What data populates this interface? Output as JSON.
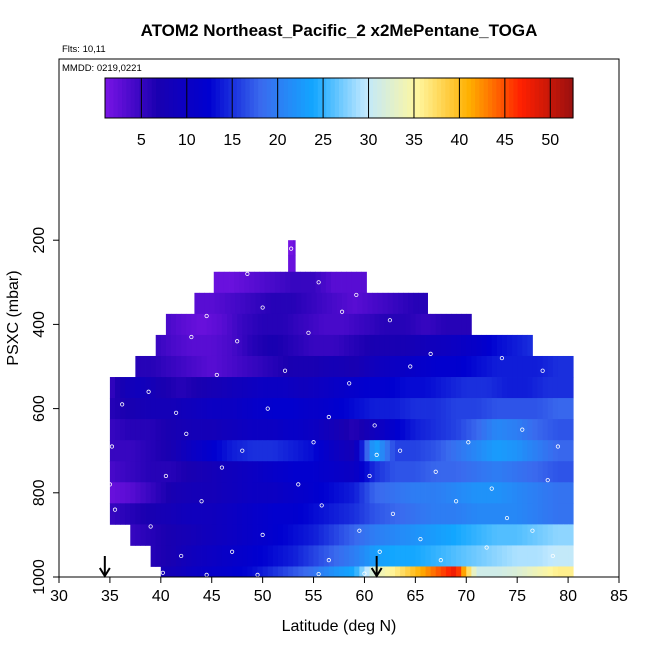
{
  "chart_data": {
    "type": "heatmap",
    "title": "ATOM2 Northeast_Pacific_2 x2MePentane_TOGA",
    "flights_note": "Flts: 10,11",
    "dates_note": "MMDD: 0219,0221",
    "xlabel": "Latitude (deg N)",
    "ylabel": "PSXC (mbar)",
    "xlim": [
      30,
      85
    ],
    "ylim": [
      1000,
      0
    ],
    "x_ticks": [
      30,
      35,
      40,
      45,
      50,
      55,
      60,
      65,
      70,
      75,
      80,
      85
    ],
    "y_ticks": [
      200,
      400,
      600,
      800,
      1000
    ],
    "colorbar": {
      "range": [
        1,
        52.5
      ],
      "ticks": [
        5,
        10,
        15,
        20,
        25,
        30,
        35,
        40,
        45,
        50
      ],
      "colors": [
        "#7a14e6",
        "#1a00b0",
        "#0000d0",
        "#3a6aee",
        "#12a6ff",
        "#bfe8ff",
        "#fff7a0",
        "#ffb000",
        "#ff2000",
        "#9a1010"
      ]
    },
    "arrows_lat": [
      34.5,
      61.2
    ],
    "layers": [
      {
        "p": 220,
        "lat": [
          52.5,
          53.2
        ],
        "v": [
          1,
          2
        ]
      },
      {
        "p": 250,
        "lat": [
          52.5,
          53.2
        ],
        "v": [
          2,
          2
        ]
      },
      {
        "p": 300,
        "lat": [
          45.2,
          47,
          49,
          51,
          53,
          55,
          57,
          59,
          60.2
        ],
        "v": [
          2,
          2,
          3,
          4,
          5,
          5,
          3,
          3,
          3
        ]
      },
      {
        "p": 350,
        "lat": [
          43.3,
          45,
          47,
          49,
          51,
          53,
          55,
          57,
          59,
          61,
          63,
          65,
          66.2
        ],
        "v": [
          3,
          3,
          4,
          5,
          6,
          6,
          5,
          4,
          3,
          4,
          5,
          6,
          6
        ]
      },
      {
        "p": 400,
        "lat": [
          40.5,
          42,
          44,
          46,
          48,
          50,
          52,
          54,
          56,
          58,
          60,
          62,
          64,
          66,
          68,
          70.5
        ],
        "v": [
          4,
          3,
          2,
          3,
          5,
          6,
          6,
          5,
          4,
          4,
          5,
          6,
          6,
          5,
          6,
          6
        ]
      },
      {
        "p": 450,
        "lat": [
          39.5,
          41,
          43,
          45,
          47,
          49,
          51,
          53,
          55,
          57,
          59,
          61,
          63,
          65,
          67,
          69,
          71,
          73,
          75,
          76.5
        ],
        "v": [
          5,
          4,
          3,
          3,
          4,
          6,
          7,
          6,
          5,
          5,
          6,
          7,
          7,
          8,
          9,
          10,
          11,
          13,
          14,
          15
        ]
      },
      {
        "p": 500,
        "lat": [
          37.5,
          39,
          41,
          43,
          45,
          47,
          49,
          51,
          53,
          55,
          57,
          59,
          61,
          63,
          65,
          67,
          69,
          71,
          73,
          75,
          77,
          79,
          80.5
        ],
        "v": [
          6,
          6,
          5,
          4,
          3,
          4,
          5,
          6,
          7,
          7,
          8,
          7,
          9,
          10,
          11,
          12,
          12,
          13,
          14,
          14,
          14,
          15,
          15
        ]
      },
      {
        "p": 550,
        "lat": [
          35,
          36.5,
          38,
          40,
          42,
          44,
          46,
          48,
          50,
          52,
          54,
          56,
          58,
          60,
          62,
          64,
          66,
          68,
          70,
          72,
          74,
          76,
          78,
          80.5
        ],
        "v": [
          5,
          8,
          9,
          7,
          6,
          7,
          8,
          9,
          10,
          10,
          9,
          10,
          11,
          12,
          12,
          13,
          13,
          14,
          15,
          15,
          14,
          14,
          15,
          15
        ]
      },
      {
        "p": 600,
        "lat": [
          35,
          37,
          39,
          41,
          43,
          45,
          47,
          49,
          51,
          53,
          55,
          57,
          59,
          61,
          63,
          65,
          67,
          69,
          71,
          73,
          75,
          77,
          79,
          80.5
        ],
        "v": [
          6,
          7,
          8,
          8,
          9,
          10,
          10,
          11,
          12,
          12,
          11,
          12,
          13,
          14,
          14,
          15,
          15,
          16,
          16,
          17,
          17,
          17,
          18,
          18
        ]
      },
      {
        "p": 650,
        "lat": [
          35,
          37,
          39,
          41,
          43,
          45,
          47,
          49,
          51,
          53,
          55,
          57,
          59,
          61,
          63,
          65,
          67,
          69,
          71,
          73,
          75,
          77,
          79,
          80.5
        ],
        "v": [
          5,
          6,
          6,
          7,
          8,
          8,
          9,
          10,
          10,
          11,
          10,
          8,
          6,
          9,
          12,
          14,
          15,
          16,
          18,
          21,
          20,
          18,
          17,
          17
        ]
      },
      {
        "p": 700,
        "lat": [
          35,
          37,
          39,
          41,
          43,
          45,
          47,
          49,
          51,
          53,
          55,
          57,
          59,
          61,
          63,
          65,
          67,
          69,
          71,
          73,
          75,
          77,
          79,
          80.5
        ],
        "v": [
          5,
          5,
          6,
          7,
          10,
          12,
          14,
          15,
          15,
          14,
          13,
          10,
          8,
          24,
          16,
          16,
          17,
          19,
          21,
          23,
          22,
          20,
          18,
          18
        ]
      },
      {
        "p": 750,
        "lat": [
          35,
          37,
          39,
          41,
          43,
          45,
          47,
          49,
          51,
          53,
          55,
          57,
          59,
          61,
          63,
          65,
          67,
          69,
          71,
          73,
          75,
          77,
          79,
          80.5
        ],
        "v": [
          4,
          5,
          6,
          6,
          7,
          8,
          9,
          10,
          11,
          12,
          12,
          11,
          10,
          15,
          17,
          17,
          18,
          18,
          19,
          20,
          19,
          18,
          17,
          17
        ]
      },
      {
        "p": 800,
        "lat": [
          35,
          37,
          39,
          41,
          43,
          45,
          47,
          49,
          51,
          53,
          55,
          57,
          59,
          61,
          63,
          65,
          67,
          69,
          71,
          73,
          75,
          77,
          79,
          80.5
        ],
        "v": [
          2,
          3,
          5,
          7,
          8,
          8,
          9,
          10,
          10,
          11,
          12,
          13,
          14,
          18,
          19,
          20,
          20,
          21,
          22,
          22,
          21,
          20,
          19,
          19
        ]
      },
      {
        "p": 850,
        "lat": [
          35,
          37,
          39,
          41,
          43,
          45,
          47,
          49,
          51,
          53,
          55,
          57,
          59,
          61,
          63,
          65,
          67,
          69,
          71,
          73,
          75,
          77,
          79,
          80.5
        ],
        "v": [
          5,
          6,
          7,
          8,
          9,
          9,
          10,
          11,
          12,
          12,
          13,
          14,
          15,
          17,
          18,
          19,
          20,
          20,
          21,
          21,
          21,
          20,
          19,
          19
        ]
      },
      {
        "p": 900,
        "lat": [
          37,
          39,
          41,
          43,
          45,
          47,
          49,
          51,
          53,
          55,
          57,
          59,
          61,
          63,
          65,
          67,
          69,
          71,
          73,
          75,
          77,
          79,
          80.5
        ],
        "v": [
          5,
          6,
          7,
          8,
          9,
          10,
          11,
          12,
          13,
          14,
          16,
          18,
          20,
          21,
          22,
          23,
          24,
          25,
          26,
          26,
          27,
          28,
          28
        ]
      },
      {
        "p": 950,
        "lat": [
          39,
          41,
          43,
          45,
          47,
          49,
          51,
          53,
          55,
          57,
          59,
          61,
          63,
          65,
          67,
          69,
          71,
          73,
          75,
          77,
          79,
          80.5
        ],
        "v": [
          6,
          7,
          9,
          10,
          11,
          12,
          13,
          14,
          16,
          18,
          20,
          23,
          24,
          24,
          25,
          26,
          27,
          28,
          29,
          29,
          30,
          30
        ]
      },
      {
        "p": 1000,
        "lat": [
          40,
          41,
          43,
          45,
          47,
          49,
          51,
          53,
          55,
          57,
          59,
          61,
          63,
          65,
          67,
          69,
          71,
          73,
          75,
          77,
          79,
          80.5
        ],
        "v": [
          8,
          8,
          10,
          11,
          12,
          13,
          15,
          17,
          19,
          22,
          24,
          33,
          36,
          40,
          44,
          48,
          31,
          31,
          32,
          34,
          36,
          36
        ]
      }
    ],
    "samples": [
      {
        "lat": 52.8,
        "p": 220
      },
      {
        "lat": 48.5,
        "p": 280
      },
      {
        "lat": 55.5,
        "p": 300
      },
      {
        "lat": 59.2,
        "p": 330
      },
      {
        "lat": 44.5,
        "p": 380
      },
      {
        "lat": 50.0,
        "p": 360
      },
      {
        "lat": 57.8,
        "p": 370
      },
      {
        "lat": 62.5,
        "p": 390
      },
      {
        "lat": 43.0,
        "p": 430
      },
      {
        "lat": 47.5,
        "p": 440
      },
      {
        "lat": 54.5,
        "p": 420
      },
      {
        "lat": 66.5,
        "p": 470
      },
      {
        "lat": 38.8,
        "p": 560
      },
      {
        "lat": 45.5,
        "p": 520
      },
      {
        "lat": 52.2,
        "p": 510
      },
      {
        "lat": 58.5,
        "p": 540
      },
      {
        "lat": 64.5,
        "p": 500
      },
      {
        "lat": 73.5,
        "p": 480
      },
      {
        "lat": 77.5,
        "p": 510
      },
      {
        "lat": 36.2,
        "p": 590
      },
      {
        "lat": 41.5,
        "p": 610
      },
      {
        "lat": 50.5,
        "p": 600
      },
      {
        "lat": 56.5,
        "p": 620
      },
      {
        "lat": 61.0,
        "p": 640
      },
      {
        "lat": 35.2,
        "p": 690
      },
      {
        "lat": 42.5,
        "p": 660
      },
      {
        "lat": 48.0,
        "p": 700
      },
      {
        "lat": 55.0,
        "p": 680
      },
      {
        "lat": 61.2,
        "p": 710
      },
      {
        "lat": 63.5,
        "p": 700
      },
      {
        "lat": 70.2,
        "p": 680
      },
      {
        "lat": 75.5,
        "p": 650
      },
      {
        "lat": 79.0,
        "p": 690
      },
      {
        "lat": 35.0,
        "p": 780
      },
      {
        "lat": 40.5,
        "p": 760
      },
      {
        "lat": 46.0,
        "p": 740
      },
      {
        "lat": 53.5,
        "p": 780
      },
      {
        "lat": 60.5,
        "p": 760
      },
      {
        "lat": 67.0,
        "p": 750
      },
      {
        "lat": 72.5,
        "p": 790
      },
      {
        "lat": 78.0,
        "p": 770
      },
      {
        "lat": 35.5,
        "p": 840
      },
      {
        "lat": 44.0,
        "p": 820
      },
      {
        "lat": 55.8,
        "p": 830
      },
      {
        "lat": 62.8,
        "p": 850
      },
      {
        "lat": 69.0,
        "p": 820
      },
      {
        "lat": 74.0,
        "p": 860
      },
      {
        "lat": 39.0,
        "p": 880
      },
      {
        "lat": 50.0,
        "p": 900
      },
      {
        "lat": 59.5,
        "p": 890
      },
      {
        "lat": 65.5,
        "p": 910
      },
      {
        "lat": 76.5,
        "p": 890
      },
      {
        "lat": 42.0,
        "p": 950
      },
      {
        "lat": 47.0,
        "p": 940
      },
      {
        "lat": 56.5,
        "p": 960
      },
      {
        "lat": 61.5,
        "p": 940
      },
      {
        "lat": 67.5,
        "p": 960
      },
      {
        "lat": 72.0,
        "p": 930
      },
      {
        "lat": 78.5,
        "p": 950
      },
      {
        "lat": 40.2,
        "p": 990
      },
      {
        "lat": 44.5,
        "p": 995
      },
      {
        "lat": 49.5,
        "p": 995
      },
      {
        "lat": 55.5,
        "p": 993
      },
      {
        "lat": 60.0,
        "p": 992
      }
    ]
  }
}
